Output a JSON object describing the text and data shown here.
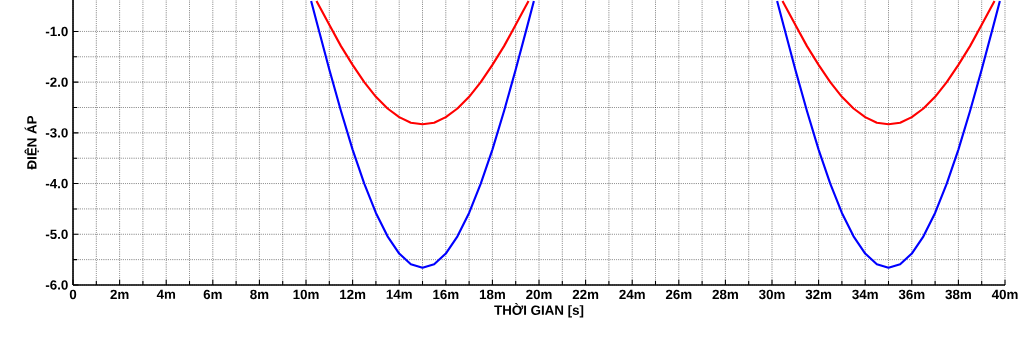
{
  "chart_data": {
    "type": "line",
    "xlabel": "THỜI GIAN  [s]",
    "ylabel": "ĐIỆN ÁP",
    "xlim": [
      0,
      40
    ],
    "ylim": [
      -6,
      -0.38
    ],
    "xticks": [
      0,
      {
        "value": 2,
        "label": "2m"
      },
      {
        "value": 4,
        "label": "4m"
      },
      {
        "value": 6,
        "label": "6m"
      },
      {
        "value": 8,
        "label": "8m"
      },
      {
        "value": 10,
        "label": "10m"
      },
      {
        "value": 12,
        "label": "12m"
      },
      {
        "value": 14,
        "label": "14m"
      },
      {
        "value": 16,
        "label": "16m"
      },
      {
        "value": 18,
        "label": "18m"
      },
      {
        "value": 20,
        "label": "20m"
      },
      {
        "value": 22,
        "label": "22m"
      },
      {
        "value": 24,
        "label": "24m"
      },
      {
        "value": 26,
        "label": "26m"
      },
      {
        "value": 28,
        "label": "28m"
      },
      {
        "value": 30,
        "label": "30m"
      },
      {
        "value": 32,
        "label": "32m"
      },
      {
        "value": 34,
        "label": "34m"
      },
      {
        "value": 36,
        "label": "36m"
      },
      {
        "value": 38,
        "label": "38m"
      },
      {
        "value": 40,
        "label": "40m"
      }
    ],
    "yticks": [
      {
        "value": -6,
        "label": "-6.0"
      },
      {
        "value": -5,
        "label": "-5.0"
      },
      {
        "value": -4,
        "label": "-4.0"
      },
      {
        "value": -3,
        "label": "-3.0"
      },
      {
        "value": -2,
        "label": "-2.0"
      },
      {
        "value": -1,
        "label": "-1.0"
      }
    ],
    "grid": true,
    "marker": "none",
    "line_style": "solid",
    "series": [
      {
        "color": "#0000ff",
        "x": [
          10.22,
          10.5,
          11,
          11.5,
          12,
          12.5,
          13,
          13.5,
          14,
          14.5,
          15,
          15.5,
          16,
          16.5,
          17,
          17.5,
          18,
          18.5,
          19,
          19.5,
          19.78
        ],
        "values": [
          -0.4,
          -0.89,
          -1.75,
          -2.57,
          -3.33,
          -4.0,
          -4.58,
          -5.04,
          -5.38,
          -5.59,
          -5.66,
          -5.59,
          -5.38,
          -5.04,
          -4.58,
          -4.0,
          -3.33,
          -2.57,
          -1.75,
          -0.89,
          -0.4
        ]
      },
      {
        "color": "#0000ff",
        "x": [
          30.22,
          30.5,
          31,
          31.5,
          32,
          32.5,
          33,
          33.5,
          34,
          34.5,
          35,
          35.5,
          36,
          36.5,
          37,
          37.5,
          38,
          38.5,
          39,
          39.5,
          39.78
        ],
        "values": [
          -0.4,
          -0.89,
          -1.75,
          -2.57,
          -3.33,
          -4.0,
          -4.58,
          -5.04,
          -5.38,
          -5.59,
          -5.66,
          -5.59,
          -5.38,
          -5.04,
          -4.58,
          -4.0,
          -3.33,
          -2.57,
          -1.75,
          -0.89,
          -0.4
        ]
      },
      {
        "color": "#ff0000",
        "x": [
          10.45,
          11,
          11.5,
          12,
          12.5,
          13,
          13.5,
          14,
          14.5,
          15,
          15.5,
          16,
          16.5,
          17,
          17.5,
          18,
          18.5,
          19,
          19.55
        ],
        "values": [
          -0.4,
          -0.87,
          -1.29,
          -1.66,
          -2.0,
          -2.29,
          -2.52,
          -2.69,
          -2.8,
          -2.83,
          -2.8,
          -2.69,
          -2.52,
          -2.29,
          -2.0,
          -1.66,
          -1.29,
          -0.87,
          -0.4
        ]
      },
      {
        "color": "#ff0000",
        "x": [
          30.45,
          31,
          31.5,
          32,
          32.5,
          33,
          33.5,
          34,
          34.5,
          35,
          35.5,
          36,
          36.5,
          37,
          37.5,
          38,
          38.5,
          39,
          39.55
        ],
        "values": [
          -0.4,
          -0.87,
          -1.29,
          -1.66,
          -2.0,
          -2.29,
          -2.52,
          -2.69,
          -2.8,
          -2.83,
          -2.8,
          -2.69,
          -2.52,
          -2.29,
          -2.0,
          -1.66,
          -1.29,
          -0.87,
          -0.4
        ]
      }
    ]
  }
}
